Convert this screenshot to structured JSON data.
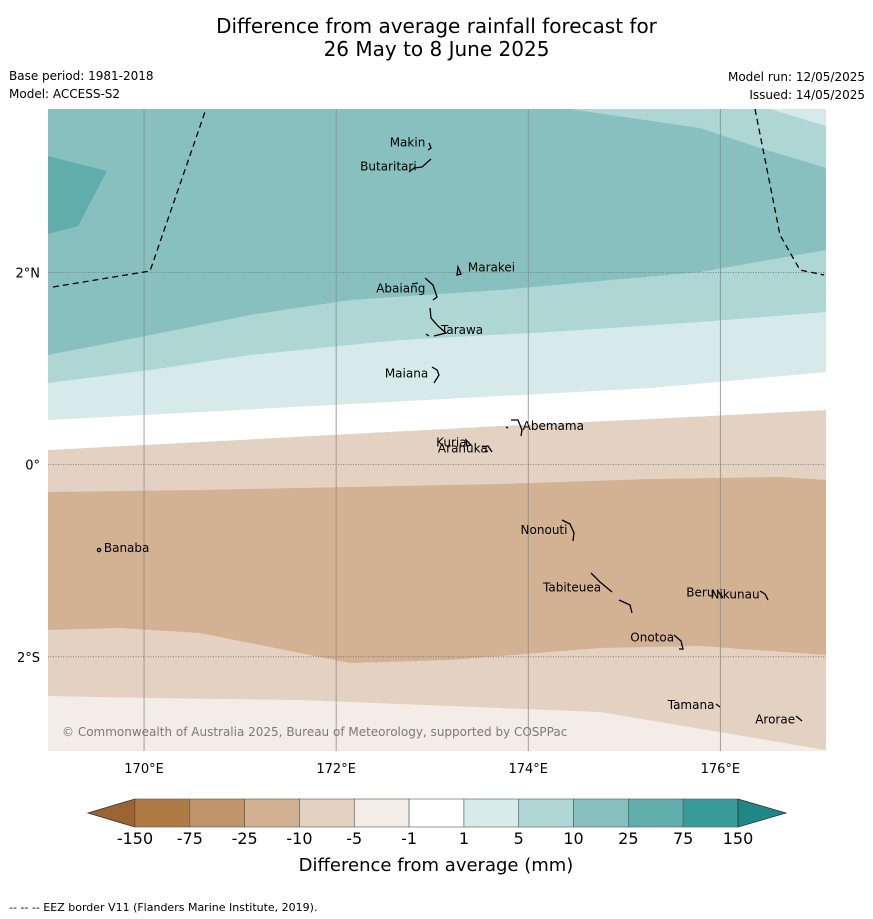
{
  "title": {
    "line1": "Difference from average rainfall forecast for",
    "line2": "26 May to 8 June 2025"
  },
  "meta": {
    "base_period": "Base period: 1981-2018",
    "model": "Model: ACCESS-S2",
    "model_run": "Model run: 12/05/2025",
    "issued": "Issued: 14/05/2025"
  },
  "map": {
    "lon_range": [
      169,
      177.1
    ],
    "lat_range": [
      -2.98,
      3.7
    ],
    "lon_ticks": [
      {
        "value": 170,
        "label": "170°E"
      },
      {
        "value": 172,
        "label": "172°E"
      },
      {
        "value": 174,
        "label": "174°E"
      },
      {
        "value": 176,
        "label": "176°E"
      }
    ],
    "lat_ticks": [
      {
        "value": 2,
        "label": "2°N"
      },
      {
        "value": 0,
        "label": "0°"
      },
      {
        "value": -2,
        "label": "2°S"
      }
    ],
    "copyright": "© Commonwealth of Australia 2025, Bureau of Meteorology, supported by COSPPac",
    "places": [
      {
        "name": "Makin",
        "lon": 172.97,
        "lat": 3.35
      },
      {
        "name": "Butaritari",
        "lon": 172.88,
        "lat": 3.1
      },
      {
        "name": "Marakei",
        "lon": 173.33,
        "lat": 2.05
      },
      {
        "name": "Abaiang",
        "lon": 172.97,
        "lat": 1.83
      },
      {
        "name": "Tarawa",
        "lon": 173.05,
        "lat": 1.4
      },
      {
        "name": "Maiana",
        "lon": 173.0,
        "lat": 0.95
      },
      {
        "name": "Abemama",
        "lon": 173.9,
        "lat": 0.4
      },
      {
        "name": "Kuria",
        "lon": 173.4,
        "lat": 0.23
      },
      {
        "name": "Aranuka",
        "lon": 173.62,
        "lat": 0.17
      },
      {
        "name": "Nonouti",
        "lon": 174.45,
        "lat": -0.68
      },
      {
        "name": "Banaba",
        "lon": 169.54,
        "lat": -0.87
      },
      {
        "name": "Tabiteuea",
        "lon": 174.8,
        "lat": -1.28
      },
      {
        "name": "Beru",
        "lon": 175.98,
        "lat": -1.33
      },
      {
        "name": "Nikunau",
        "lon": 176.45,
        "lat": -1.35
      },
      {
        "name": "Onotoa",
        "lon": 175.56,
        "lat": -1.8
      },
      {
        "name": "Tamana",
        "lon": 175.98,
        "lat": -2.5
      },
      {
        "name": "Arorae",
        "lon": 176.82,
        "lat": -2.65
      }
    ]
  },
  "colorbar": {
    "labels": [
      "-150",
      "-75",
      "-25",
      "-10",
      "-5",
      "-1",
      "1",
      "5",
      "10",
      "25",
      "75",
      "150"
    ],
    "colors": [
      "#b07a45",
      "#c29469",
      "#d2b292",
      "#e3d2c2",
      "#f4ece6",
      "#ffffff",
      "#d6eae9",
      "#add6d5",
      "#87c0bf",
      "#5fadac",
      "#369b99"
    ],
    "under_color": "#9b6432",
    "over_color": "#1f8785",
    "title": "Difference from average (mm)"
  },
  "footnote": "--  --  -- EEZ border V11 (Flanders Marine Institute, 2019)."
}
